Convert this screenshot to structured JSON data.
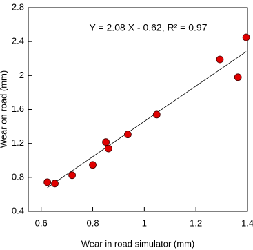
{
  "chart_data": {
    "type": "scatter",
    "annotation": "Y = 2.08 X - 0.62, R² = 0.97",
    "x_label": "Wear in road simulator (mm)",
    "y_label": "Wear on road (mm)",
    "x": [
      0.624,
      0.653,
      0.72,
      0.8,
      0.851,
      0.861,
      0.936,
      1.048,
      1.293,
      1.363,
      1.395
    ],
    "values": [
      0.743,
      0.727,
      0.825,
      0.947,
      1.216,
      1.14,
      1.306,
      1.54,
      2.19,
      1.98,
      2.45
    ],
    "color": "#e00000",
    "fit_line": {
      "slope": 2.08,
      "intercept": -0.62
    },
    "xlim": [
      0.55,
      1.4
    ],
    "xticks": [
      0.6,
      0.8,
      1,
      1.2,
      1.4
    ],
    "ylim": [
      0.4,
      2.8
    ],
    "yticks": [
      0.4,
      0.8,
      1.2,
      1.6,
      2,
      2.4,
      2.8
    ]
  }
}
